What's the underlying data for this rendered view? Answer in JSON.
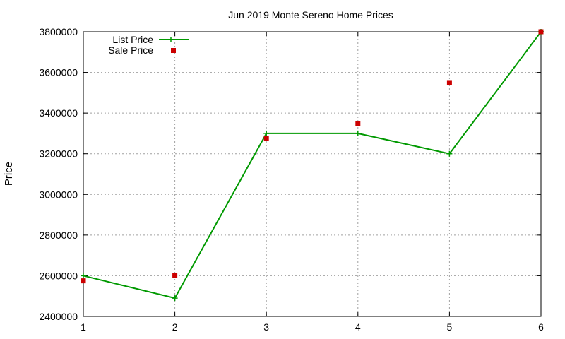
{
  "chart_data": {
    "type": "line",
    "title": "Jun 2019 Monte Sereno Home Prices",
    "xlabel": "",
    "ylabel": "Price",
    "x": [
      1,
      2,
      3,
      4,
      5,
      6
    ],
    "xlim": [
      1,
      6
    ],
    "ylim": [
      2400000,
      3800000
    ],
    "xticks": [
      "1",
      "2",
      "3",
      "4",
      "5",
      "6"
    ],
    "yticks": [
      "2400000",
      "2600000",
      "2800000",
      "3000000",
      "3200000",
      "3400000",
      "3600000",
      "3800000"
    ],
    "grid": true,
    "legend_position": "top-left",
    "series": [
      {
        "name": "List Price",
        "style": "line-with-plus-markers",
        "color": "#009900",
        "values": [
          2600000,
          2490000,
          3300000,
          3300000,
          3200000,
          3800000
        ]
      },
      {
        "name": "Sale Price",
        "style": "square-markers",
        "color": "#cc0000",
        "values": [
          2575000,
          2600000,
          3275000,
          3350000,
          3550000,
          3800000
        ]
      }
    ]
  }
}
